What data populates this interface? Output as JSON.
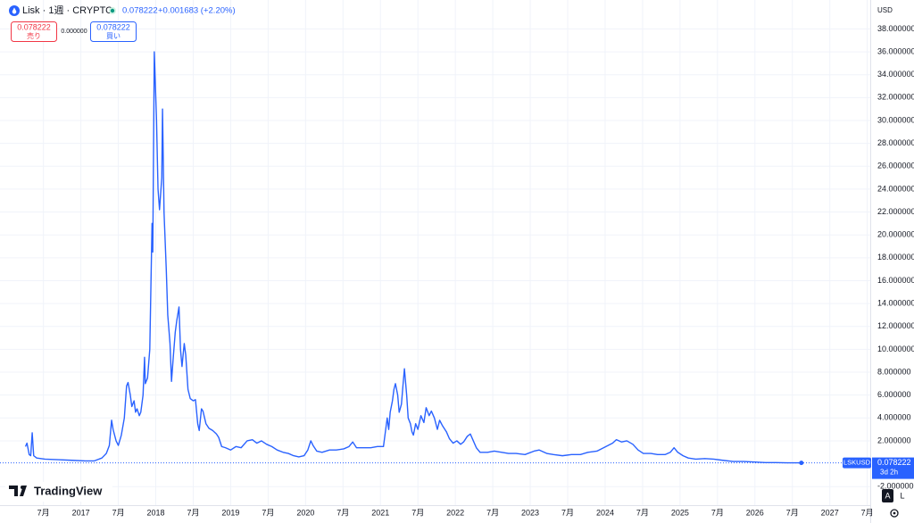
{
  "chart_data": {
    "type": "line",
    "title": "Lisk · 1週 · CRYPTO",
    "header_price": "0.078222",
    "header_change": "+0.001683 (+2.20%)",
    "sell_price": "0.078222",
    "sell_label": "売り",
    "spread": "0.000000",
    "buy_price": "0.078222",
    "buy_label": "買い",
    "currency": "USD",
    "price_label": "0.078222",
    "countdown": "3d 2h",
    "scale_auto": "A",
    "scale_log": "L",
    "logo": "TradingView",
    "grid": true,
    "xlim": [
      2015.92,
      2027.54
    ],
    "ylim": [
      -3.62,
      40.53
    ],
    "xticks": [
      {
        "value": 2016.5,
        "label": "7月"
      },
      2017,
      {
        "value": 2017.5,
        "label": "7月"
      },
      2018,
      {
        "value": 2018.5,
        "label": "7月"
      },
      2019,
      {
        "value": 2019.5,
        "label": "7月"
      },
      2020,
      {
        "value": 2020.5,
        "label": "7月"
      },
      2021,
      {
        "value": 2021.5,
        "label": "7月"
      },
      2022,
      {
        "value": 2022.5,
        "label": "7月"
      },
      2023,
      {
        "value": 2023.5,
        "label": "7月"
      },
      2024,
      {
        "value": 2024.5,
        "label": "7月"
      },
      2025,
      {
        "value": 2025.5,
        "label": "7月"
      },
      2026,
      {
        "value": 2026.5,
        "label": "7月"
      },
      2027,
      {
        "value": 2027.5,
        "label": "7月"
      }
    ],
    "yticks": [
      {
        "value": -2,
        "label": "-2.000000"
      },
      {
        "value": 2,
        "label": "2.000000"
      },
      {
        "value": 4,
        "label": "4.000000"
      },
      {
        "value": 6,
        "label": "6.000000"
      },
      {
        "value": 8,
        "label": "8.000000"
      },
      {
        "value": 10,
        "label": "10.000000"
      },
      {
        "value": 12,
        "label": "12.000000"
      },
      {
        "value": 14,
        "label": "14.000000"
      },
      {
        "value": 16,
        "label": "16.000000"
      },
      {
        "value": 18,
        "label": "18.000000"
      },
      {
        "value": 20,
        "label": "20.000000"
      },
      {
        "value": 22,
        "label": "22.000000"
      },
      {
        "value": 24,
        "label": "24.000000"
      },
      {
        "value": 26,
        "label": "26.000000"
      },
      {
        "value": 28,
        "label": "28.000000"
      },
      {
        "value": 30,
        "label": "30.000000"
      },
      {
        "value": 32,
        "label": "32.000000"
      },
      {
        "value": 34,
        "label": "34.000000"
      },
      {
        "value": 36,
        "label": "36.000000"
      },
      {
        "value": 38,
        "label": "38.000000"
      }
    ],
    "x": [
      2016.26,
      2016.28,
      2016.31,
      2016.33,
      2016.35,
      2016.37,
      2016.41,
      2016.52,
      2016.7,
      2016.88,
      2017.06,
      2017.18,
      2017.28,
      2017.34,
      2017.38,
      2017.41,
      2017.43,
      2017.47,
      2017.5,
      2017.54,
      2017.58,
      2017.61,
      2017.63,
      2017.66,
      2017.68,
      2017.71,
      2017.73,
      2017.75,
      2017.78,
      2017.8,
      2017.83,
      2017.85,
      2017.86,
      2017.89,
      2017.92,
      2017.95,
      2017.96,
      2017.98,
      2018.01,
      2018.03,
      2018.05,
      2018.08,
      2018.09,
      2018.11,
      2018.14,
      2018.16,
      2018.19,
      2018.21,
      2018.23,
      2018.26,
      2018.28,
      2018.31,
      2018.33,
      2018.35,
      2018.38,
      2018.4,
      2018.43,
      2018.46,
      2018.5,
      2018.53,
      2018.56,
      2018.58,
      2018.61,
      2018.63,
      2018.67,
      2018.71,
      2018.76,
      2018.81,
      2018.84,
      2018.88,
      2018.93,
      2019.0,
      2019.07,
      2019.14,
      2019.22,
      2019.29,
      2019.35,
      2019.41,
      2019.48,
      2019.55,
      2019.62,
      2019.7,
      2019.77,
      2019.84,
      2019.91,
      2019.98,
      2020.03,
      2020.07,
      2020.1,
      2020.15,
      2020.22,
      2020.32,
      2020.41,
      2020.51,
      2020.58,
      2020.63,
      2020.68,
      2020.77,
      2020.87,
      2020.96,
      2021.04,
      2021.06,
      2021.09,
      2021.11,
      2021.13,
      2021.16,
      2021.18,
      2021.2,
      2021.23,
      2021.25,
      2021.28,
      2021.3,
      2021.32,
      2021.35,
      2021.37,
      2021.4,
      2021.42,
      2021.44,
      2021.47,
      2021.5,
      2021.54,
      2021.58,
      2021.61,
      2021.65,
      2021.68,
      2021.72,
      2021.76,
      2021.79,
      2021.83,
      2021.88,
      2021.92,
      2021.97,
      2022.02,
      2022.07,
      2022.11,
      2022.16,
      2022.2,
      2022.24,
      2022.28,
      2022.33,
      2022.43,
      2022.52,
      2022.62,
      2022.71,
      2022.81,
      2022.93,
      2023.05,
      2023.12,
      2023.22,
      2023.31,
      2023.43,
      2023.55,
      2023.67,
      2023.77,
      2023.89,
      2024.01,
      2024.1,
      2024.15,
      2024.22,
      2024.29,
      2024.37,
      2024.44,
      2024.51,
      2024.61,
      2024.7,
      2024.8,
      2024.87,
      2024.92,
      2024.97,
      2025.04,
      2025.11,
      2025.21,
      2025.33,
      2025.45,
      2025.57,
      2025.71,
      2025.85,
      2026.0,
      2026.14,
      2026.28,
      2026.43,
      2026.62
    ],
    "series": [
      {
        "name": "LSKUSD",
        "color": "#2962ff",
        "values": [
          1.5,
          1.8,
          0.8,
          0.7,
          2.7,
          0.7,
          0.5,
          0.4,
          0.35,
          0.3,
          0.25,
          0.25,
          0.5,
          0.9,
          1.6,
          3.8,
          3.0,
          2.0,
          1.6,
          2.5,
          4.0,
          6.8,
          7.1,
          6.0,
          5.0,
          5.5,
          4.5,
          4.8,
          4.2,
          4.5,
          6.0,
          9.3,
          7.0,
          7.5,
          10.0,
          21.0,
          18.5,
          36.0,
          30.0,
          24.0,
          22.2,
          25.0,
          31.0,
          22.0,
          17.0,
          13.0,
          10.5,
          7.2,
          9.0,
          11.5,
          12.5,
          13.7,
          10.0,
          8.5,
          10.5,
          9.5,
          6.5,
          5.7,
          5.5,
          5.6,
          3.5,
          2.9,
          4.8,
          4.6,
          3.5,
          3.1,
          2.9,
          2.6,
          2.3,
          1.5,
          1.4,
          1.2,
          1.5,
          1.4,
          2.0,
          2.1,
          1.8,
          2.0,
          1.7,
          1.5,
          1.2,
          1.0,
          0.9,
          0.7,
          0.6,
          0.7,
          1.2,
          2.0,
          1.6,
          1.1,
          1.0,
          1.2,
          1.2,
          1.3,
          1.5,
          1.9,
          1.4,
          1.4,
          1.4,
          1.5,
          1.5,
          2.5,
          4.0,
          3.0,
          4.5,
          5.5,
          6.5,
          7.0,
          6.0,
          4.5,
          5.2,
          6.8,
          8.3,
          6.0,
          4.0,
          3.5,
          2.8,
          2.5,
          3.5,
          3.0,
          4.2,
          3.6,
          4.9,
          4.2,
          4.6,
          4.0,
          3.0,
          3.8,
          3.3,
          2.8,
          2.2,
          1.8,
          2.0,
          1.7,
          1.9,
          2.4,
          2.6,
          2.0,
          1.4,
          1.0,
          1.0,
          1.1,
          1.0,
          0.9,
          0.9,
          0.8,
          1.1,
          1.2,
          0.9,
          0.8,
          0.7,
          0.8,
          0.8,
          1.0,
          1.1,
          1.5,
          1.8,
          2.1,
          1.9,
          2.0,
          1.7,
          1.2,
          0.9,
          0.9,
          0.8,
          0.8,
          1.0,
          1.4,
          1.0,
          0.7,
          0.5,
          0.4,
          0.45,
          0.4,
          0.3,
          0.2,
          0.2,
          0.15,
          0.1,
          0.1,
          0.08,
          0.078222
        ]
      }
    ]
  }
}
